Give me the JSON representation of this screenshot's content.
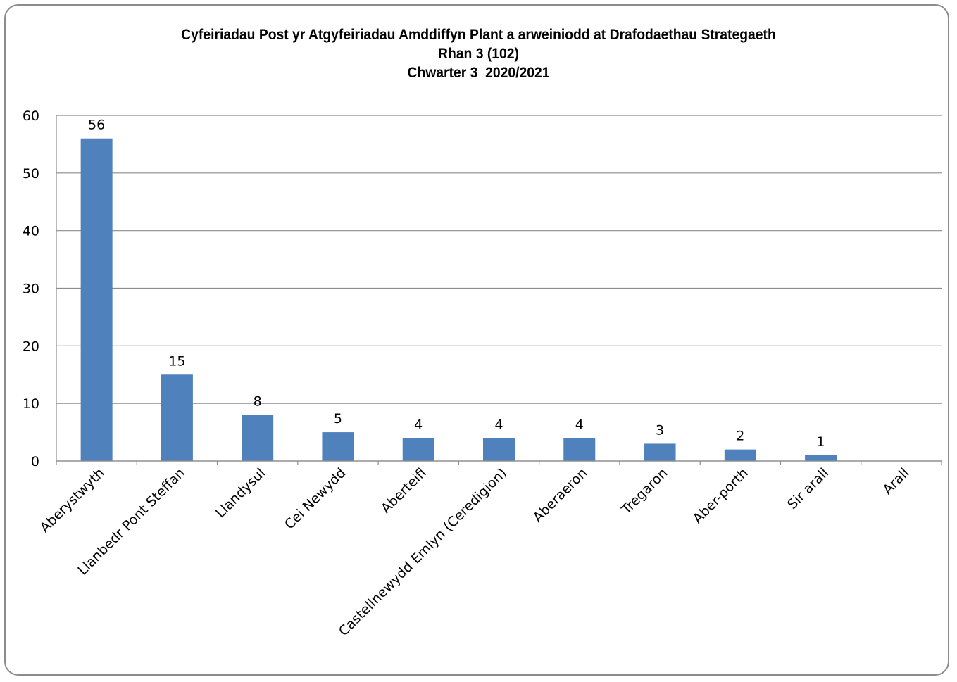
{
  "chart_data": {
    "type": "bar",
    "title": "Cyfeiriadau Post yr Atgyfeiriadau Amddiffyn Plant a arweiniodd at Drafodaethau Strategaeth",
    "subtitle_line2": "Rhan 3 (102)",
    "subtitle_line3": "Chwarter 3  2020/2021",
    "categories": [
      "Aberystwyth",
      "Llanbedr Pont Steffan",
      "Llandysul",
      "Cei Newydd",
      "Aberteifi",
      "Castellnewydd Emlyn (Ceredigion)",
      "Aberaeron",
      "Tregaron",
      "Aber-porth",
      "Sir arall",
      "Arall"
    ],
    "values": [
      56,
      15,
      8,
      5,
      4,
      4,
      4,
      3,
      2,
      1,
      0
    ],
    "data_labels": [
      "56",
      "15",
      "8",
      "5",
      "4",
      "4",
      "4",
      "3",
      "2",
      "1",
      ""
    ],
    "yticks": [
      "0",
      "10",
      "20",
      "30",
      "40",
      "50",
      "60"
    ],
    "ylim": [
      0,
      60
    ],
    "grid": true,
    "legend": "none",
    "bar_color": "#4f81bd"
  }
}
